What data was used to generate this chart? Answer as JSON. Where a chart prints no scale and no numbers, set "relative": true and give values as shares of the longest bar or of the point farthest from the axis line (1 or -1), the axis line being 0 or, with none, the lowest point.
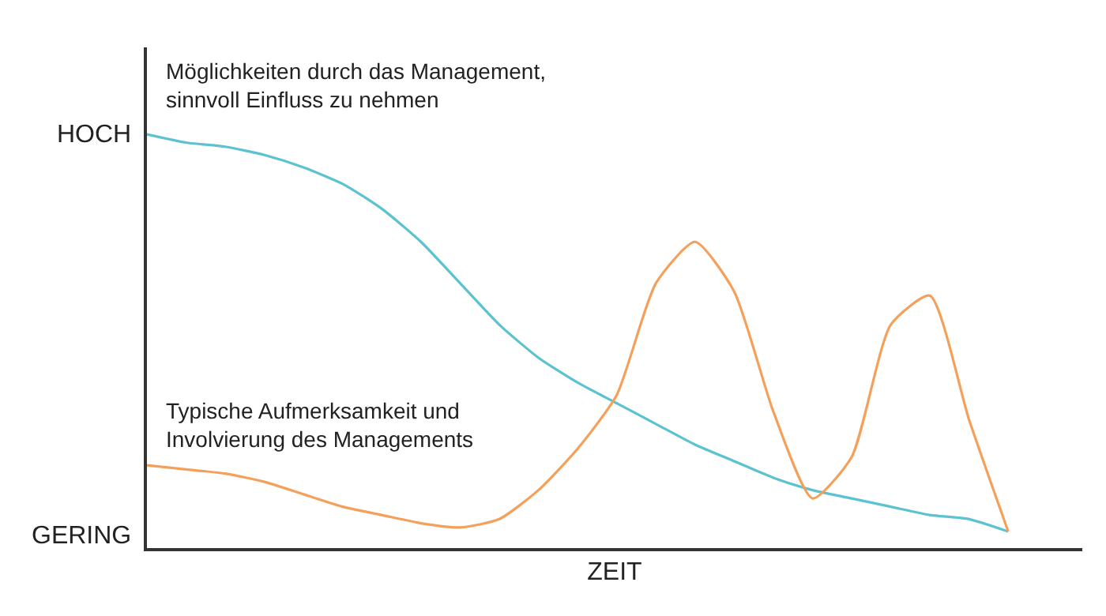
{
  "chart_data": {
    "type": "line",
    "xlabel": "ZEIT",
    "categories": [
      null,
      null,
      null,
      null,
      null,
      null,
      null,
      null,
      null,
      null,
      null,
      null,
      null,
      null,
      null,
      null,
      null,
      null,
      null,
      null,
      null,
      null,
      null
    ],
    "series": [
      {
        "name": "Möglichkeiten durch das Management, sinnvoll Einfluss zu nehmen",
        "color": "#5bc2d0",
        "values": [
          1.0,
          0.98,
          0.97,
          0.95,
          0.92,
          0.88,
          0.82,
          0.74,
          0.64,
          0.54,
          0.46,
          0.4,
          0.35,
          0.3,
          0.25,
          0.21,
          0.17,
          0.14,
          0.12,
          0.1,
          0.08,
          0.07,
          0.04
        ]
      },
      {
        "name": "Typische Aufmerksamkeit und Involvierung des Managements",
        "color": "#f5a05a",
        "values": [
          0.2,
          0.19,
          0.18,
          0.16,
          0.13,
          0.1,
          0.08,
          0.06,
          0.05,
          0.07,
          0.14,
          0.24,
          0.37,
          0.64,
          0.74,
          0.62,
          0.33,
          0.12,
          0.22,
          0.54,
          0.61,
          0.31,
          0.04
        ]
      }
    ],
    "relative": true,
    "annotations": [
      "HOCH",
      "GERING"
    ],
    "grid": false
  }
}
